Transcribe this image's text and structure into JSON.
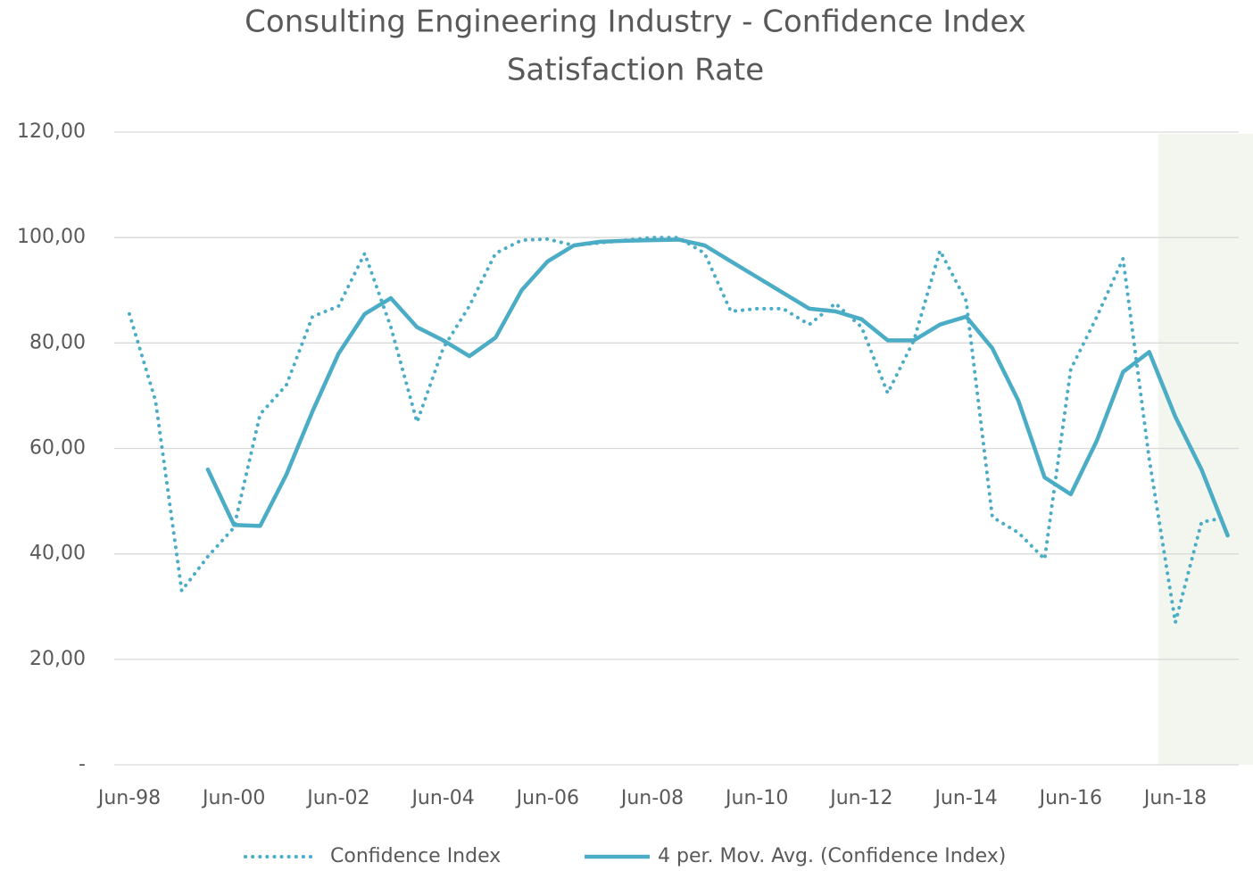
{
  "chart_data": {
    "type": "line",
    "title": "Consulting Engineering Industry - Confidence Index",
    "subtitle": "Satisfaction Rate",
    "categories": [
      "Jun-98",
      null,
      null,
      null,
      "Jun-00",
      null,
      null,
      null,
      "Jun-02",
      null,
      null,
      null,
      "Jun-04",
      null,
      null,
      null,
      "Jun-06",
      null,
      null,
      null,
      "Jun-08",
      null,
      null,
      null,
      "Jun-10",
      null,
      null,
      null,
      "Jun-12",
      null,
      null,
      null,
      "Jun-14",
      null,
      null,
      null,
      "Jun-16",
      null,
      null,
      null,
      "Jun-18",
      null,
      null
    ],
    "series": [
      {
        "name": "Confidence Index",
        "color": "#4bacc6",
        "style": "dotted",
        "values": [
          85.5,
          69,
          33,
          39.5,
          45,
          66.5,
          72,
          85,
          87,
          97,
          83,
          65,
          79,
          87,
          97,
          99.5,
          99.7,
          98.5,
          99,
          99.5,
          100,
          100,
          97,
          86,
          86.5,
          86.5,
          83.5,
          87.5,
          83,
          70.5,
          80.5,
          97.5,
          88,
          47,
          44,
          39,
          75,
          85,
          96,
          58,
          27,
          46,
          47
        ]
      },
      {
        "name": "4 per. Mov. Avg. (Confidence Index)",
        "color": "#4bacc6",
        "style": "solid",
        "values": [
          null,
          null,
          null,
          56,
          45.5,
          45.3,
          55,
          67,
          78,
          85.5,
          88.5,
          83,
          80.5,
          77.5,
          81,
          90,
          95.5,
          98.5,
          99.2,
          99.4,
          99.5,
          99.6,
          98.5,
          95.5,
          92.5,
          89.5,
          86.5,
          86,
          84.5,
          80.5,
          80.5,
          83.5,
          85,
          79,
          69,
          54.5,
          51.3,
          61.5,
          74.5,
          78.3,
          66,
          56,
          43.5
        ]
      }
    ],
    "ylim": [
      0,
      120
    ],
    "yticks": [
      {
        "value": 0,
        "label": "-"
      },
      {
        "value": 20,
        "label": "20,00"
      },
      {
        "value": 40,
        "label": "40,00"
      },
      {
        "value": 60,
        "label": "60,00"
      },
      {
        "value": 80,
        "label": "80,00"
      },
      {
        "value": 100,
        "label": "100,00"
      },
      {
        "value": 120,
        "label": "120,00"
      }
    ],
    "grid": true,
    "legend": "bottom"
  }
}
